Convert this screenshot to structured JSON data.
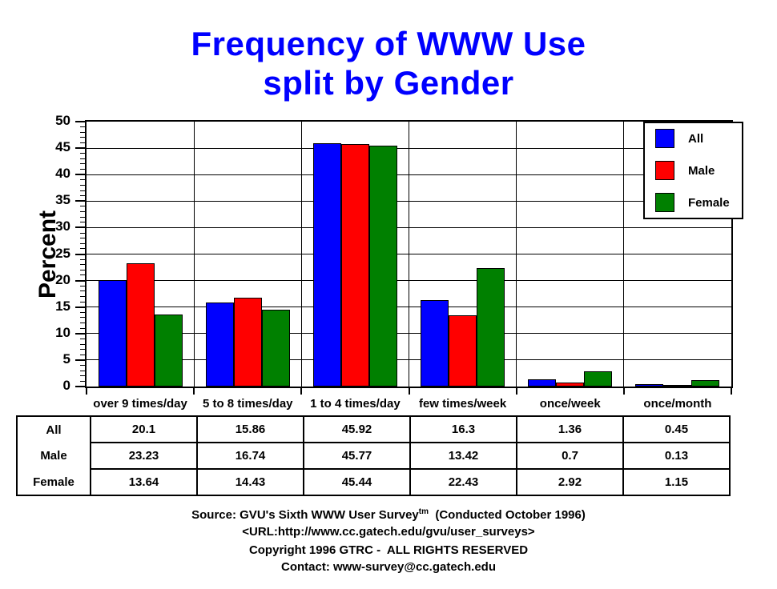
{
  "title": {
    "line1": "Frequency of WWW Use",
    "line2": "split by Gender",
    "color": "#0000ff"
  },
  "chart_data": {
    "type": "bar",
    "title": "Frequency of WWW Use split by Gender",
    "categories": [
      "over 9 times/day",
      "5 to 8 times/day",
      "1 to 4 times/day",
      "few times/week",
      "once/week",
      "once/month"
    ],
    "series": [
      {
        "name": "All",
        "color": "#0000ff",
        "values": [
          20.1,
          15.86,
          45.92,
          16.3,
          1.36,
          0.45
        ]
      },
      {
        "name": "Male",
        "color": "#ff0000",
        "values": [
          23.23,
          16.74,
          45.77,
          13.42,
          0.7,
          0.13
        ]
      },
      {
        "name": "Female",
        "color": "#008000",
        "values": [
          13.64,
          14.43,
          45.44,
          22.43,
          2.92,
          1.15
        ]
      }
    ],
    "xlabel": "",
    "ylabel": "Percent",
    "ylim": [
      0,
      50
    ],
    "ytick_step": 5,
    "minor_tick_step": 1,
    "grid": true,
    "legend_position": "top-right",
    "bar_outline_color": "#000000",
    "grid_color": "#000000"
  },
  "footer": {
    "source_prefix": "Source: ",
    "source_main": "GVU's Sixth WWW User Survey",
    "source_sup": "tm",
    "source_suffix": "  (Conducted October 1996)",
    "url": "<URL:http://www.cc.gatech.edu/gvu/user_surveys>",
    "copyright": "Copyright 1996 GTRC -  ALL RIGHTS RESERVED",
    "contact": "Contact: www-survey@cc.gatech.edu"
  }
}
